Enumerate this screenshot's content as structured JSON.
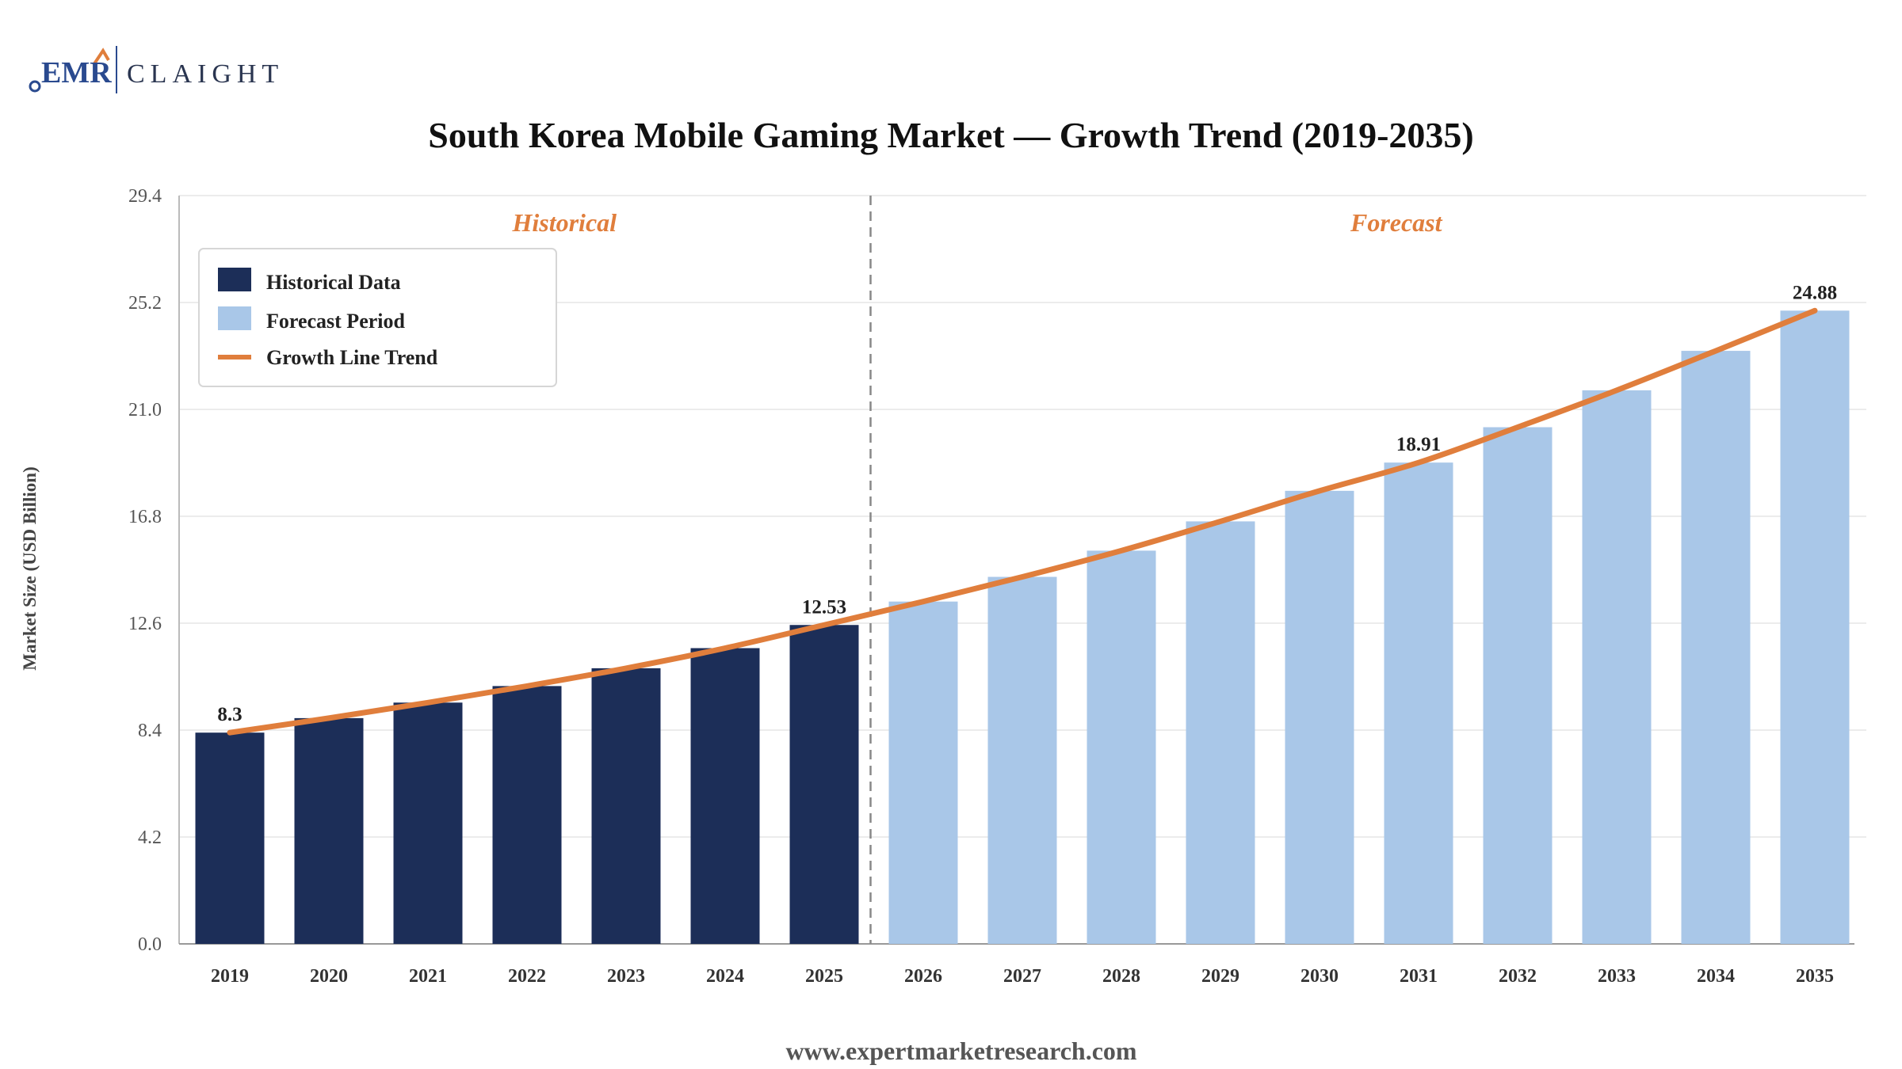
{
  "brand": {
    "left": "EMR",
    "right": "CLAIGHT"
  },
  "footer": {
    "url": "www.expertmarketresearch.com"
  },
  "colors": {
    "historical": "#1c2e58",
    "forecast": "#a9c7e8",
    "trend": "#e07e3c",
    "section_label": "#e07e3c",
    "brand_blue": "#2a4a8f",
    "brand_orange": "#e07e3c"
  },
  "chart_data": {
    "type": "bar",
    "title": "South Korea Mobile Gaming Market — Growth Trend (2019-2035)",
    "xlabel": "",
    "ylabel": "Market Size (USD Billion)",
    "ylim": [
      0,
      29.4
    ],
    "yticks": [
      "0.0",
      "4.2",
      "8.4",
      "12.6",
      "16.8",
      "21.0",
      "25.2",
      "29.4"
    ],
    "grid": true,
    "legend_position": "top-left",
    "categories": [
      "2019",
      "2020",
      "2021",
      "2022",
      "2023",
      "2024",
      "2025",
      "2026",
      "2027",
      "2028",
      "2029",
      "2030",
      "2031",
      "2032",
      "2033",
      "2034",
      "2035"
    ],
    "series": [
      {
        "name": "Historical Data",
        "values": [
          8.3,
          8.87,
          9.48,
          10.13,
          10.83,
          11.62,
          12.53,
          null,
          null,
          null,
          null,
          null,
          null,
          null,
          null,
          null,
          null
        ]
      },
      {
        "name": "Forecast Period",
        "values": [
          null,
          null,
          null,
          null,
          null,
          null,
          null,
          13.45,
          14.42,
          15.45,
          16.6,
          17.8,
          18.91,
          20.3,
          21.75,
          23.3,
          24.88
        ]
      }
    ],
    "trend": {
      "name": "Growth Line Trend",
      "values": [
        8.3,
        8.87,
        9.48,
        10.13,
        10.83,
        11.62,
        12.53,
        13.45,
        14.42,
        15.45,
        16.6,
        17.8,
        18.91,
        20.3,
        21.75,
        23.3,
        24.88
      ]
    },
    "data_labels": [
      {
        "category": "2019",
        "text": "8.3"
      },
      {
        "category": "2025",
        "text": "12.53"
      },
      {
        "category": "2031",
        "text": "18.91"
      },
      {
        "category": "2035",
        "text": "24.88"
      }
    ],
    "sections": {
      "historical_label": "Historical",
      "forecast_label": "Forecast",
      "divider_after": "2025"
    }
  }
}
